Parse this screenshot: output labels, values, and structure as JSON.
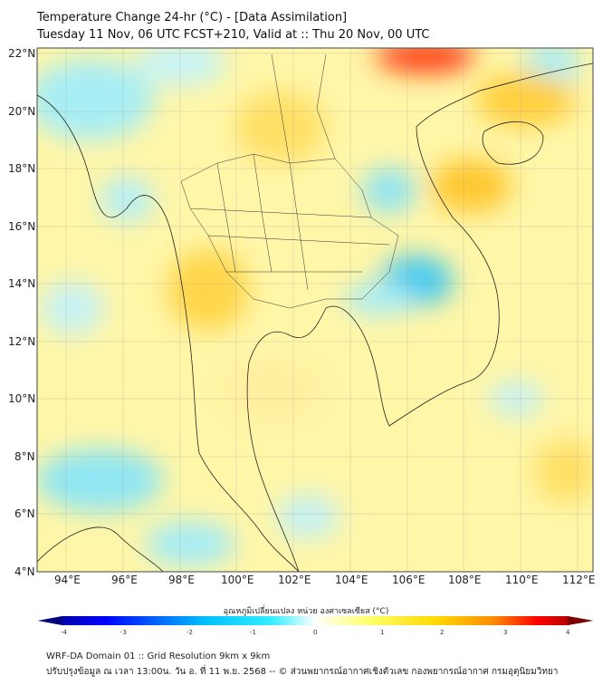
{
  "title": {
    "line1": "Temperature Change 24-hr (°C) - [Data Assimilation]",
    "line2": "Tuesday 11 Nov, 06 UTC FCST+210, Valid at :: Thu 20 Nov, 00 UTC"
  },
  "map": {
    "lat_labels": [
      "22°N",
      "20°N",
      "18°N",
      "16°N",
      "14°N",
      "12°N",
      "10°N",
      "8°N",
      "6°N",
      "4°N"
    ],
    "lon_labels": [
      "94°E",
      "96°E",
      "98°E",
      "100°E",
      "102°E",
      "104°E",
      "106°E",
      "108°E",
      "110°E",
      "112°E"
    ]
  },
  "colorbar": {
    "label": "อุณหภูมิเปลี่ยนแปลง หน่วย องศาเซลเซียส (°C)",
    "ticks": [
      "-4",
      "-3",
      "-2",
      "-1",
      "0",
      "1",
      "2",
      "3",
      "4"
    ],
    "colors": [
      "#00007f",
      "#0000ff",
      "#00bfff",
      "#33eeff",
      "#ffffff",
      "#ffff66",
      "#ffd700",
      "#ff8c00",
      "#ff0000",
      "#7f0000"
    ]
  },
  "footer": {
    "line1": "WRF-DA Domain 01 :: Grid Resolution 9km x 9km",
    "line2": "ปรับปรุงข้อมูล ณ เวลา 13:00น. วัน อ. ที่ 11 พ.ย. 2568 -- © ส่วนพยากรณ์อากาศเชิงตัวเลข กองพยากรณ์อากาศ กรมอุตุนิยมวิทยา"
  }
}
